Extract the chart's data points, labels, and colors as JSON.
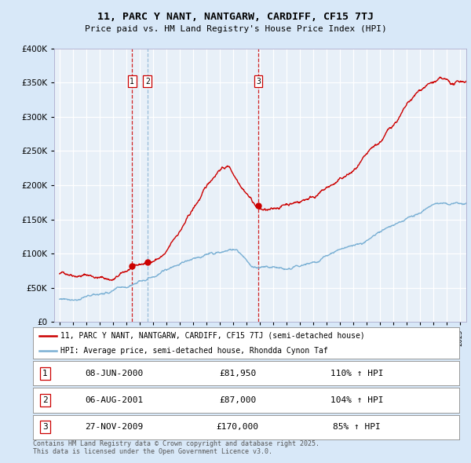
{
  "title_line1": "11, PARC Y NANT, NANTGARW, CARDIFF, CF15 7TJ",
  "title_line2": "Price paid vs. HM Land Registry's House Price Index (HPI)",
  "hpi_label": "HPI: Average price, semi-detached house, Rhondda Cynon Taf",
  "property_label": "11, PARC Y NANT, NANTGARW, CARDIFF, CF15 7TJ (semi-detached house)",
  "red_color": "#cc0000",
  "blue_color": "#7ab0d4",
  "background_color": "#d8e8f8",
  "plot_bg_color": "#e8f0f8",
  "sale_markers": [
    {
      "num": 1,
      "date_x": 2000.44,
      "price": 81950,
      "label": "1",
      "date_str": "08-JUN-2000",
      "price_str": "£81,950",
      "hpi_pct": "110% ↑ HPI"
    },
    {
      "num": 2,
      "date_x": 2001.59,
      "price": 87000,
      "label": "2",
      "date_str": "06-AUG-2001",
      "price_str": "£87,000",
      "hpi_pct": "104% ↑ HPI"
    },
    {
      "num": 3,
      "date_x": 2009.9,
      "price": 170000,
      "label": "3",
      "date_str": "27-NOV-2009",
      "price_str": "£170,000",
      "hpi_pct": "85% ↑ HPI"
    }
  ],
  "vline_colors": [
    "#cc0000",
    "#7ab0d4",
    "#cc0000"
  ],
  "footer_text": "Contains HM Land Registry data © Crown copyright and database right 2025.\nThis data is licensed under the Open Government Licence v3.0.",
  "ylim": [
    0,
    400000
  ],
  "xlim": [
    1994.6,
    2025.5
  ]
}
